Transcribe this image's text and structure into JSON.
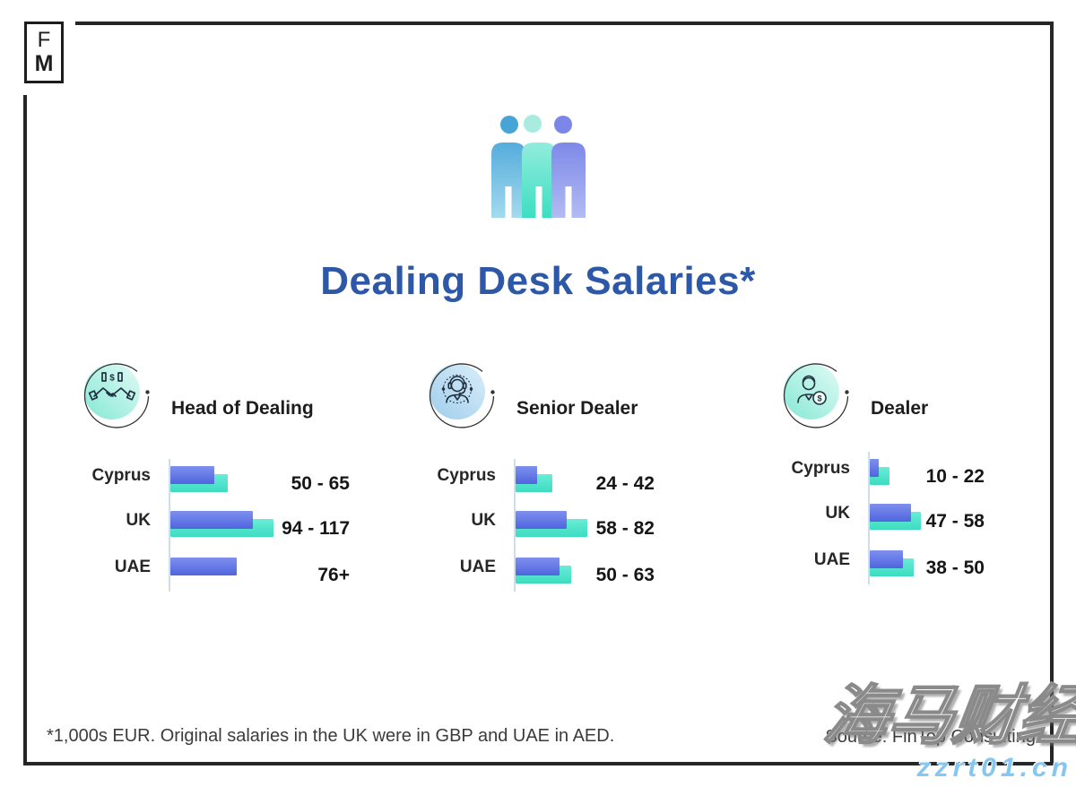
{
  "logo": {
    "top": "F",
    "bottom": "M"
  },
  "title": "Dealing Desk Salaries*",
  "header_icon": "people-group-icon",
  "chart_data": [
    {
      "type": "bar",
      "orientation": "horizontal",
      "title": "Head of Dealing",
      "icon": "handshake-money-icon",
      "units": "1,000s EUR",
      "categories": [
        "Cyprus",
        "UK",
        "UAE"
      ],
      "series": [
        {
          "name": "min",
          "color": "#5d71e5",
          "values": [
            50,
            94,
            76
          ]
        },
        {
          "name": "max",
          "color": "#47e3c8",
          "values": [
            65,
            117,
            null
          ]
        }
      ],
      "value_labels": [
        "50 - 65",
        "94 - 117",
        "76+"
      ]
    },
    {
      "type": "bar",
      "orientation": "horizontal",
      "title": "Senior Dealer",
      "icon": "dealer-headset-icon",
      "units": "1,000s EUR",
      "categories": [
        "Cyprus",
        "UK",
        "UAE"
      ],
      "series": [
        {
          "name": "min",
          "color": "#5d71e5",
          "values": [
            24,
            58,
            50
          ]
        },
        {
          "name": "max",
          "color": "#47e3c8",
          "values": [
            42,
            82,
            63
          ]
        }
      ],
      "value_labels": [
        "24 - 42",
        "58 - 82",
        "50 - 63"
      ]
    },
    {
      "type": "bar",
      "orientation": "horizontal",
      "title": "Dealer",
      "icon": "dealer-coin-icon",
      "units": "1,000s EUR",
      "categories": [
        "Cyprus",
        "UK",
        "UAE"
      ],
      "series": [
        {
          "name": "min",
          "color": "#5d71e5",
          "values": [
            10,
            47,
            38
          ]
        },
        {
          "name": "max",
          "color": "#47e3c8",
          "values": [
            22,
            58,
            50
          ]
        }
      ],
      "value_labels": [
        "10 - 22",
        "47 - 58",
        "38 - 50"
      ]
    }
  ],
  "footer": {
    "footnote": "*1,000s EUR. Original salaries in the UK were in GBP and UAE in AED.",
    "source": "Source: FinTop Consulting"
  },
  "watermark": {
    "text": "海马财经",
    "url": "zzrt01.cn"
  },
  "colors": {
    "title": "#2d57a7",
    "bar_min": "#5d71e5",
    "bar_max": "#47e3c8",
    "axis_line": "#cfdeeb",
    "frame": "#262626",
    "watermark_url": "#85c7f0"
  }
}
